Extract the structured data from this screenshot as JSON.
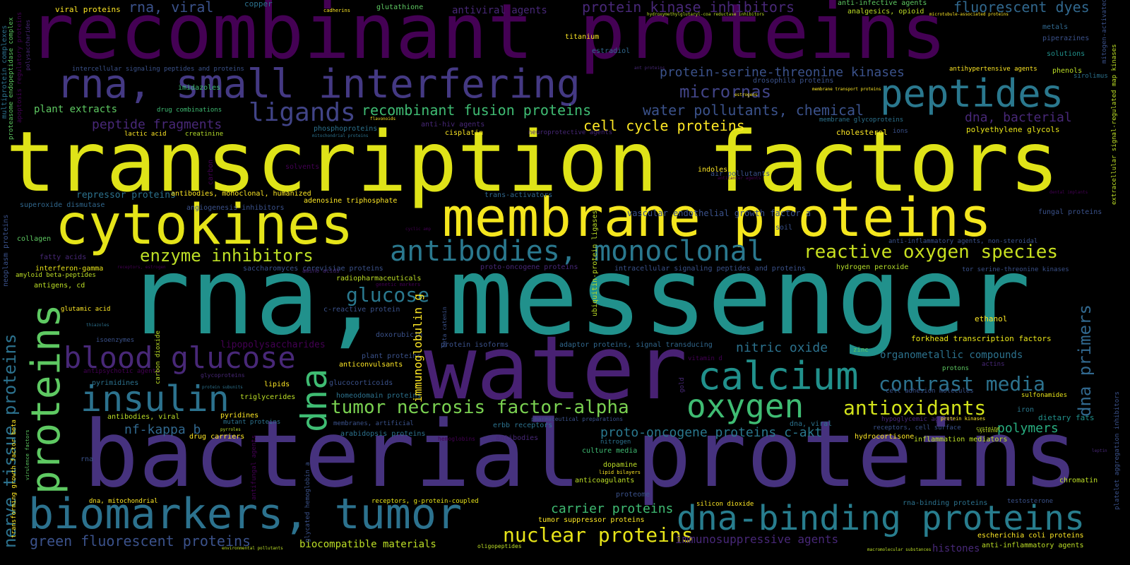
{
  "palette": {
    "deep_purple": "#440154",
    "indigo": "#3b2f7a",
    "blue": "#31688e",
    "teal": "#21918c",
    "green": "#5ec962",
    "lime": "#b5de2b",
    "yellow": "#fde725"
  },
  "words": {
    "w1": "recombinant proteins",
    "w2": "transcription factors",
    "w3": "rna, messenger",
    "w4": "bacterial proteins",
    "w5": "water",
    "w6": "cytokines",
    "w7": "membrane proteins",
    "w8": "rna, small interfering",
    "w9": "peptides",
    "w10": "biomarkers, tumor",
    "w11": "dna-binding proteins",
    "w12": "antibodies, monoclonal",
    "w13": "calcium",
    "w14": "insulin",
    "w15": "oxygen",
    "w16": "blood glucose",
    "w17": "ligands",
    "w18": "glucose",
    "w19": "tumor necrosis factor-alpha",
    "w20": "contrast media",
    "w21": "antioxidants",
    "w22": "nuclear proteins",
    "w23": "green fluorescent proteins",
    "w24": "reactive oxygen species",
    "w25": "enzyme inhibitors",
    "w26": "micrornas",
    "w27": "recombinant fusion proteins",
    "w28": "water pollutants, chemical",
    "w29": "cell cycle proteins",
    "w30": "protein-serine-threonine kinases",
    "w31": "fluorescent dyes",
    "w32": "protein kinase inhibitors",
    "w33": "rna, viral",
    "w34": "antiviral agents",
    "w35": "peptide fragments",
    "w36": "plant extracts",
    "w37": "dna, bacterial",
    "w38": "nitric oxide",
    "w39": "proto-oncogene proteins c-akt",
    "w40": "polymers",
    "w41": "immunosuppressive agents",
    "w42": "carrier proteins",
    "w43": "nf-kappa b",
    "w44": "organometallic compounds",
    "w45": "forkhead transcription factors",
    "w46": "histones",
    "w47": "biocompatible materials",
    "w48": "viral proteins",
    "w49": "copper",
    "w50": "glutathione",
    "w51": "cadherins",
    "w52": "analgesics, opioid",
    "w53": "anti-infective agents",
    "w54": "metals",
    "w55": "piperazines",
    "w56": "solutions",
    "w57": "titanium",
    "w58": "estradiol",
    "w59": "imidazoles",
    "w60": "drug combinations",
    "w61": "intercellular signaling peptides and proteins",
    "w62": "drosophila proteins",
    "w63": "membrane transport proteins",
    "w64": "antihypertensive agents",
    "w65": "phenols",
    "w66": "sirolimus",
    "w67": "anti-hiv agents",
    "w68": "phosphoproteins",
    "w69": "lactic acid",
    "w70": "creatinine",
    "w71": "cisplatin",
    "w72": "neuroprotective agents",
    "w73": "membrane glycoproteins",
    "w74": "polyethylene glycols",
    "w75": "cholesterol",
    "w76": "ions",
    "w77": "air pollutants",
    "w78": "solvents",
    "w79": "indoles",
    "w80": "repressor proteins",
    "w81": "antibodies, monoclonal, humanized",
    "w82": "adenosine triphosphate",
    "w83": "superoxide dismutase",
    "w84": "angiogenesis inhibitors",
    "w85": "trans-activators",
    "w86": "vascular endothelial growth factor a",
    "w87": "fungal proteins",
    "w88": "collagen",
    "w89": "soil",
    "w90": "anti-inflammatory agents, non-steroidal",
    "w91": "fatty acids",
    "w92": "interferon-gamma",
    "w93": "amyloid beta-peptides",
    "w94": "saccharomyces cerevisiae proteins",
    "w95": "amino acids",
    "w96": "proto-oncogene proteins",
    "w97": "intracellular signaling peptides and proteins",
    "w98": "hydrogen peroxide",
    "w99": "tor serine-threonine kinases",
    "w100": "radiopharmaceuticals",
    "w101": "antigens, cd",
    "w102": "genetic markers",
    "w103": "glutamic acid",
    "w104": "c-reactive protein",
    "w105": "ethanol",
    "w106": "doxorubicin",
    "w107": "isoenzymes",
    "w108": "lipopolysaccharides",
    "w109": "protein isoforms",
    "w110": "adaptor proteins, signal transducing",
    "w111": "zinc",
    "w112": "actins",
    "w113": "protons",
    "w114": "antipsychotic agents",
    "w115": "plant proteins",
    "w116": "anticonvulsants",
    "w117": "vitamin d",
    "w118": "pyrimidines",
    "w119": "glycoproteins",
    "w120": "glucocorticoids",
    "w121": "lipids",
    "w122": "homeodomain proteins",
    "w123": "cell adhesion molecules",
    "w124": "sulfonamides",
    "w125": "triglycerides",
    "w126": "pyridines",
    "w127": "antibodies, viral",
    "w128": "mutant proteins",
    "w129": "membranes, artificial",
    "w130": "erbb receptors",
    "w131": "pharmaceutical preparations",
    "w132": "dna, viral",
    "w133": "hypoglycemic agents",
    "w134": "protein kinases",
    "w135": "iron",
    "w136": "dietary fats",
    "w137": "receptors, cell surface",
    "w138": "cysteine",
    "w139": "drug carriers",
    "w140": "arabidopsis proteins",
    "w141": "hemoglobins",
    "w142": "antibodies",
    "w143": "nitrogen",
    "w144": "hydrocortisone",
    "w145": "inflammation mediators",
    "w146": "culture media",
    "w147": "rna",
    "w148": "dopamine",
    "w149": "lipid bilayers",
    "w150": "anticoagulants",
    "w151": "chromatin",
    "w152": "proteome",
    "w153": "dna, mitochondrial",
    "w154": "receptors, g-protein-coupled",
    "w155": "silicon dioxide",
    "w156": "rna-binding proteins",
    "w157": "testosterone",
    "w158": "tumor suppressor proteins",
    "w159": "escherichia coli proteins",
    "w160": "anti-inflammatory agents",
    "w161": "oligopeptides",
    "w162": "macromolecular substances",
    "w163": "environmental pollutants",
    "w164": "hydroxymethylglutaryl-coa reductase inhibitors",
    "w165": "microtubule-associated proteins",
    "w166": "ant proteins",
    "w167": "estrogens",
    "w168": "flavonoids",
    "w169": "mitochondrial proteins",
    "w170": "antioxidants",
    "w171": "anticancer agents",
    "w172": "dental implants",
    "w173": "cyclic amp",
    "w174": "receptors, estrogen",
    "w175": "thiazoles",
    "w176": "protein subunits",
    "w177": "pyrroles",
    "w178": "ligands",
    "w179": "cysteine",
    "w180": "leptin",
    "w181": "platelet aggregation inhibitors",
    "w182": "dna",
    "w183": "proteins",
    "w184": "nerve tissue proteins",
    "w185": "dna primers",
    "w186": "immunoglobulin g",
    "w187": "ubiquitin-protein ligases",
    "w188": "carbon",
    "w189": "carbon dioxide",
    "w190": "glycated hemoglobin a",
    "w191": "gold",
    "w192": "beta catenin",
    "w193": "antifungal agents",
    "w194": "transforming growth factor beta",
    "w195": "virulence factors",
    "w196": "neoplasm proteins",
    "w197": "multiprotein complexes",
    "w198": "proteasome endopeptidase complex",
    "w199": "apoptosis regulatory proteins",
    "w200": "polysaccharides",
    "w201": "extracellular signal-regulated map kinases",
    "w202": "mitogen-activated protein kinases",
    "w203": "antineoplastic agents"
  }
}
